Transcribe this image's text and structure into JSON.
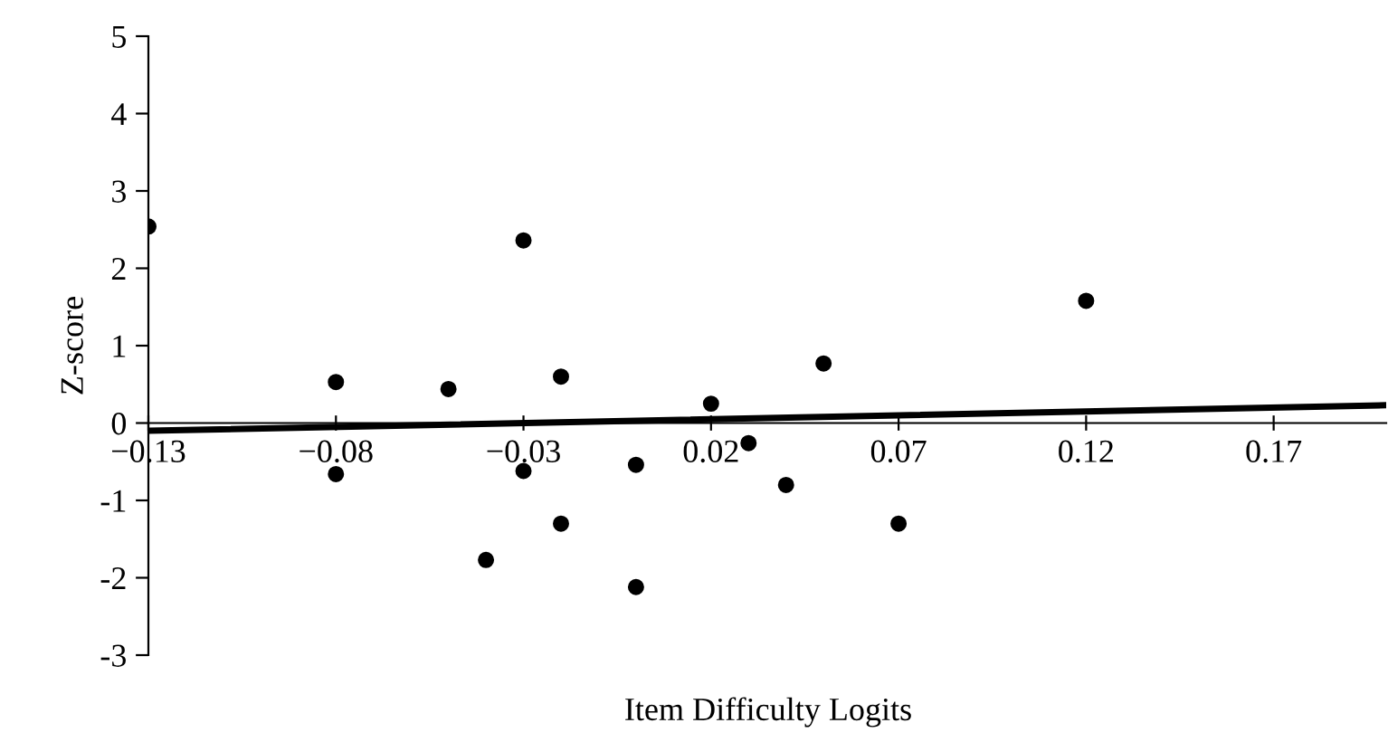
{
  "chart_data": {
    "type": "scatter",
    "xlabel": "Item Difficulty Logits",
    "ylabel": "Z-score",
    "xlim": [
      -0.13,
      0.2
    ],
    "ylim": [
      -3,
      5
    ],
    "xticks": [
      {
        "value": -0.13,
        "label": "−0.13"
      },
      {
        "value": -0.08,
        "label": "−0.08"
      },
      {
        "value": -0.03,
        "label": "−0.03"
      },
      0.02,
      0.07,
      0.12,
      0.17
    ],
    "yticks": [
      -3,
      -2,
      -1,
      0,
      1,
      2,
      3,
      4,
      5
    ],
    "grid": false,
    "legend": false,
    "series": [
      {
        "marker": "circle",
        "color": "#000000",
        "x": [
          -0.13,
          -0.08,
          -0.08,
          -0.05,
          -0.03,
          -0.03,
          -0.02,
          -0.02,
          -0.04,
          0.0,
          0.0,
          0.02,
          0.03,
          0.04,
          0.05,
          0.07,
          0.12
        ],
        "values": [
          2.54,
          0.53,
          -0.66,
          0.44,
          2.36,
          -0.62,
          0.6,
          -1.3,
          -1.77,
          -0.54,
          -2.12,
          0.25,
          -0.26,
          -0.8,
          0.77,
          -1.3,
          1.58
        ]
      },
      {
        "type": "line",
        "marker": "none",
        "color": "#000000",
        "x": [
          -0.13,
          0.2
        ],
        "values": [
          -0.1,
          0.23
        ]
      }
    ]
  }
}
